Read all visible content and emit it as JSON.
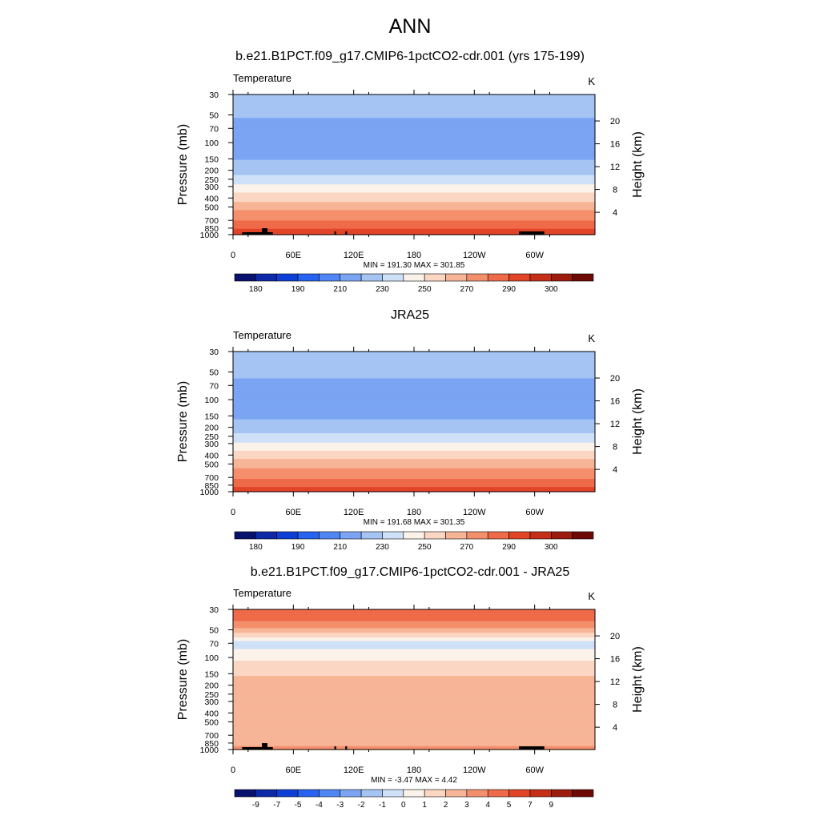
{
  "page": {
    "title": "ANN"
  },
  "colors": {
    "temperature_palette": [
      "#08126e",
      "#0c2aa8",
      "#0d3fd6",
      "#2663f0",
      "#4f86f4",
      "#7ba5f2",
      "#a5c4f4",
      "#cfe1f8",
      "#fbf2ea",
      "#fbd6c2",
      "#f7b597",
      "#f48f6c",
      "#ee6a48",
      "#e24428",
      "#c52e17",
      "#9c1d0e",
      "#6e0a06"
    ],
    "difference_palette": [
      "#08126e",
      "#0c2aa8",
      "#0d3fd6",
      "#2663f0",
      "#4f86f4",
      "#7ba5f2",
      "#a5c4f4",
      "#cfe1f8",
      "#fbf2ea",
      "#fbd6c2",
      "#f7b597",
      "#f48f6c",
      "#ee6a48",
      "#e24428",
      "#c52e17",
      "#9c1d0e",
      "#6e0a06"
    ],
    "topography": "#000000"
  },
  "chart_data": [
    {
      "type": "heatmap",
      "title": "b.e21.B1PCT.f09_g17.CMIP6-1pctCO2-cdr.001 (yrs 175-199)",
      "left_label": "Temperature",
      "right_label": "K",
      "ylabel": "Pressure (mb)",
      "ylabel_right": "Height (km)",
      "x_ticks": [
        "0",
        "60E",
        "120E",
        "180",
        "120W",
        "60W"
      ],
      "y_ticks": [
        "30",
        "50",
        "70",
        "100",
        "150",
        "200",
        "250",
        "300",
        "400",
        "500",
        "700",
        "850",
        "1000"
      ],
      "y_ticks_right": [
        "20",
        "16",
        "12",
        "8",
        "4"
      ],
      "stats": "MIN = 191.30  MAX = 301.85",
      "colorbar_labels": [
        "180",
        "190",
        "210",
        "230",
        "250",
        "270",
        "290",
        "300"
      ],
      "levels": [
        175,
        180,
        185,
        190,
        200,
        210,
        220,
        230,
        240,
        250,
        260,
        270,
        280,
        290,
        295,
        300
      ],
      "profile": [
        {
          "p": 30,
          "v": 218
        },
        {
          "p": 40,
          "v": 215
        },
        {
          "p": 50,
          "v": 211
        },
        {
          "p": 70,
          "v": 207
        },
        {
          "p": 100,
          "v": 205
        },
        {
          "p": 125,
          "v": 206
        },
        {
          "p": 150,
          "v": 209
        },
        {
          "p": 200,
          "v": 216
        },
        {
          "p": 250,
          "v": 224
        },
        {
          "p": 300,
          "v": 232
        },
        {
          "p": 400,
          "v": 246
        },
        {
          "p": 500,
          "v": 256
        },
        {
          "p": 600,
          "v": 264
        },
        {
          "p": 700,
          "v": 270
        },
        {
          "p": 850,
          "v": 279
        },
        {
          "p": 925,
          "v": 283
        },
        {
          "p": 1000,
          "v": 287
        }
      ],
      "topography": true
    },
    {
      "type": "heatmap",
      "title": "JRA25",
      "left_label": "Temperature",
      "right_label": "K",
      "ylabel": "Pressure (mb)",
      "ylabel_right": "Height (km)",
      "x_ticks": [
        "0",
        "60E",
        "120E",
        "180",
        "120W",
        "60W"
      ],
      "y_ticks": [
        "30",
        "50",
        "70",
        "100",
        "150",
        "200",
        "250",
        "300",
        "400",
        "500",
        "700",
        "850",
        "1000"
      ],
      "y_ticks_right": [
        "20",
        "16",
        "12",
        "8",
        "4"
      ],
      "stats": "MIN = 191.68  MAX = 301.35",
      "colorbar_labels": [
        "180",
        "190",
        "210",
        "230",
        "250",
        "270",
        "290",
        "300"
      ],
      "levels": [
        175,
        180,
        185,
        190,
        200,
        210,
        220,
        230,
        240,
        250,
        260,
        270,
        280,
        290,
        295,
        300
      ],
      "profile": [
        {
          "p": 30,
          "v": 216
        },
        {
          "p": 40,
          "v": 214
        },
        {
          "p": 50,
          "v": 212
        },
        {
          "p": 70,
          "v": 208
        },
        {
          "p": 100,
          "v": 206
        },
        {
          "p": 125,
          "v": 206
        },
        {
          "p": 150,
          "v": 208
        },
        {
          "p": 200,
          "v": 215
        },
        {
          "p": 250,
          "v": 223
        },
        {
          "p": 300,
          "v": 231
        },
        {
          "p": 400,
          "v": 245
        },
        {
          "p": 500,
          "v": 255
        },
        {
          "p": 600,
          "v": 263
        },
        {
          "p": 700,
          "v": 269
        },
        {
          "p": 850,
          "v": 278
        },
        {
          "p": 925,
          "v": 282
        },
        {
          "p": 1000,
          "v": 286
        }
      ],
      "topography": false
    },
    {
      "type": "heatmap",
      "title": "b.e21.B1PCT.f09_g17.CMIP6-1pctCO2-cdr.001 - JRA25",
      "left_label": "Temperature",
      "right_label": "K",
      "ylabel": "Pressure (mb)",
      "ylabel_right": "Height (km)",
      "x_ticks": [
        "0",
        "60E",
        "120E",
        "180",
        "120W",
        "60W"
      ],
      "y_ticks": [
        "30",
        "50",
        "70",
        "100",
        "150",
        "200",
        "250",
        "300",
        "400",
        "500",
        "700",
        "850",
        "1000"
      ],
      "y_ticks_right": [
        "20",
        "16",
        "12",
        "8",
        "4"
      ],
      "stats": "MIN =  -3.47  MAX =   4.42",
      "colorbar_labels": [
        "-9",
        "-7",
        "-5",
        "-4",
        "-3",
        "-2",
        "-1",
        "0",
        "1",
        "2",
        "3",
        "4",
        "5",
        "7",
        "9"
      ],
      "levels": [
        -11,
        -9,
        -7,
        -5,
        -4,
        -3,
        -2,
        -1,
        0,
        1,
        2,
        3,
        4,
        5,
        7,
        9
      ],
      "profile": [
        {
          "p": 30,
          "v": 4.0
        },
        {
          "p": 40,
          "v": 3.0
        },
        {
          "p": 50,
          "v": 1.8
        },
        {
          "p": 60,
          "v": 0.0
        },
        {
          "p": 70,
          "v": -1.6
        },
        {
          "p": 85,
          "v": -0.8
        },
        {
          "p": 100,
          "v": -0.2
        },
        {
          "p": 125,
          "v": 0.3
        },
        {
          "p": 150,
          "v": 0.9
        },
        {
          "p": 200,
          "v": 1.4
        },
        {
          "p": 300,
          "v": 1.3
        },
        {
          "p": 500,
          "v": 1.2
        },
        {
          "p": 700,
          "v": 1.0
        },
        {
          "p": 850,
          "v": 1.5
        },
        {
          "p": 925,
          "v": 2.0
        },
        {
          "p": 1000,
          "v": 3.0
        }
      ],
      "topography": true
    }
  ]
}
